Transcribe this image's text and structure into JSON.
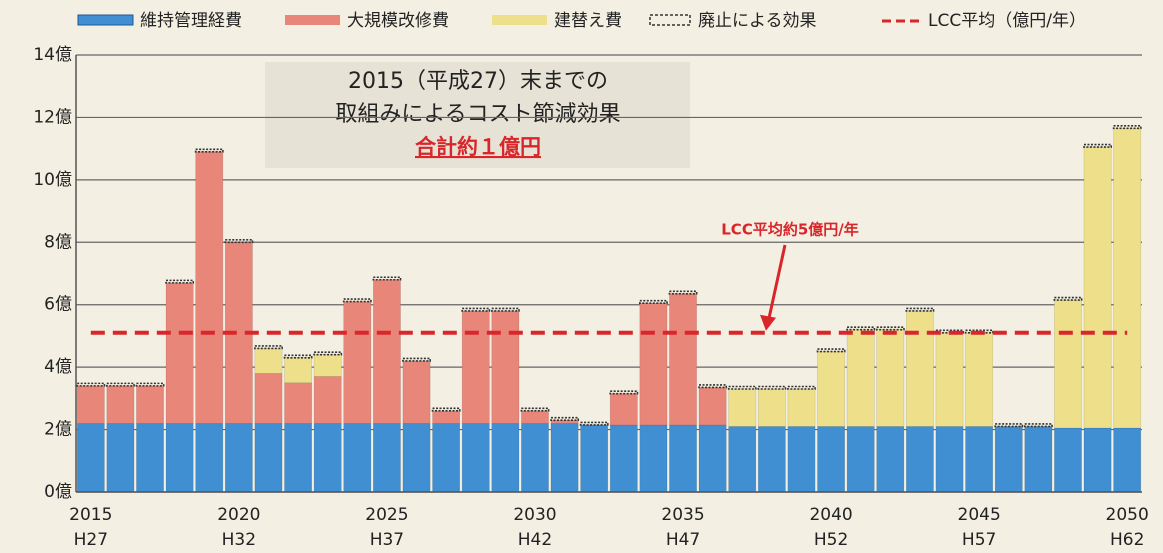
{
  "chart_data": {
    "type": "stacked_bar",
    "categories": [
      "2015",
      null,
      null,
      null,
      null,
      "2020",
      null,
      null,
      null,
      null,
      "2025",
      null,
      null,
      null,
      null,
      "2030",
      null,
      null,
      null,
      null,
      "2035",
      null,
      null,
      null,
      null,
      "2040",
      null,
      null,
      null,
      null,
      "2045",
      null,
      null,
      null,
      null,
      "2050"
    ],
    "era_labels": [
      "H27",
      null,
      null,
      null,
      null,
      "H32",
      null,
      null,
      null,
      null,
      "H37",
      null,
      null,
      null,
      null,
      "H42",
      null,
      null,
      null,
      null,
      "H47",
      null,
      null,
      null,
      null,
      "H52",
      null,
      null,
      null,
      null,
      "H57",
      null,
      null,
      null,
      null,
      "H62"
    ],
    "series": [
      {
        "name": "維持管理経費",
        "color": "#3f8fd2",
        "values": [
          2.2,
          2.2,
          2.2,
          2.2,
          2.2,
          2.2,
          2.2,
          2.2,
          2.2,
          2.2,
          2.2,
          2.2,
          2.2,
          2.2,
          2.2,
          2.2,
          2.2,
          2.15,
          2.15,
          2.15,
          2.15,
          2.15,
          2.1,
          2.1,
          2.1,
          2.1,
          2.1,
          2.1,
          2.1,
          2.1,
          2.1,
          2.1,
          2.1,
          2.05,
          2.05,
          2.05
        ]
      },
      {
        "name": "大規模改修費",
        "color": "#e8867a",
        "values": [
          1.2,
          1.2,
          1.2,
          4.5,
          8.7,
          5.8,
          1.6,
          1.3,
          1.5,
          3.9,
          4.6,
          2.0,
          0.4,
          3.6,
          3.6,
          0.4,
          0.1,
          0,
          1.0,
          3.9,
          4.2,
          1.2,
          0,
          0,
          0,
          0,
          0,
          0,
          0,
          0,
          0,
          0,
          0,
          0,
          0,
          0
        ]
      },
      {
        "name": "建替え費",
        "color": "#eee08a",
        "values": [
          0,
          0,
          0,
          0,
          0,
          0,
          0.8,
          0.8,
          0.7,
          0,
          0,
          0,
          0,
          0,
          0,
          0,
          0,
          0,
          0,
          0,
          0,
          0,
          1.2,
          1.2,
          1.2,
          2.4,
          3.1,
          3.1,
          3.7,
          3.0,
          3.0,
          0,
          0,
          4.1,
          9.0,
          9.6
        ]
      },
      {
        "name": "廃止による効果",
        "color": "#333333",
        "values": [
          0.08,
          0.08,
          0.08,
          0.08,
          0.08,
          0.08,
          0.08,
          0.08,
          0.08,
          0.08,
          0.08,
          0.08,
          0.08,
          0.08,
          0.08,
          0.08,
          0.08,
          0.08,
          0.08,
          0.08,
          0.08,
          0.08,
          0.08,
          0.08,
          0.08,
          0.08,
          0.08,
          0.08,
          0.08,
          0.08,
          0.08,
          0.08,
          0.08,
          0.08,
          0.08,
          0.08
        ]
      }
    ],
    "average": {
      "name": "LCC平均（億円/年）",
      "value": 5.1,
      "color": "#d9262b",
      "label": "LCC平均約5億円/年"
    },
    "annotation": [
      "2015（平成27）末までの",
      "取組みによるコスト節減効果",
      "合計約１億円"
    ],
    "ylim": [
      0,
      14
    ],
    "yticks": [
      {
        "value": 0,
        "label": "0億"
      },
      {
        "value": 2,
        "label": "2億"
      },
      {
        "value": 4,
        "label": "4億"
      },
      {
        "value": 6,
        "label": "6億"
      },
      {
        "value": 8,
        "label": "8億"
      },
      {
        "value": 10,
        "label": "10億"
      },
      {
        "value": 12,
        "label": "12億"
      },
      {
        "value": 14,
        "label": "14億"
      }
    ],
    "grid": true
  }
}
